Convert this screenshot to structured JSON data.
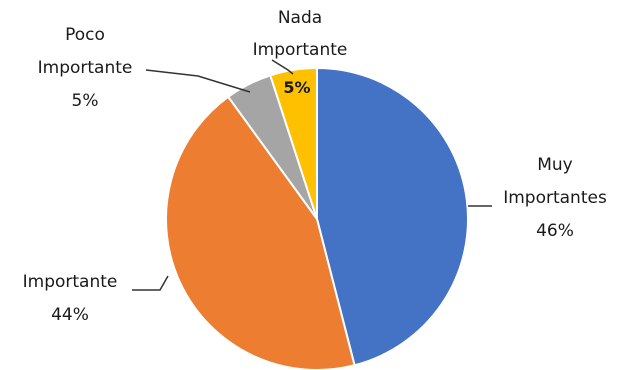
{
  "chart_data": {
    "type": "pie",
    "title": "",
    "legend": "none",
    "slices": [
      {
        "label_lines": [
          "Muy",
          "Importantes"
        ],
        "value": 46,
        "value_label": "46%",
        "color": "#4472C4"
      },
      {
        "label_lines": [
          "Importante"
        ],
        "value": 44,
        "value_label": "44%",
        "color": "#ED7D31"
      },
      {
        "label_lines": [
          "Poco",
          "Importante"
        ],
        "value": 5,
        "value_label": "5%",
        "color": "#A5A5A5"
      },
      {
        "label_lines": [
          "Nada",
          "Importante"
        ],
        "value": 5,
        "value_label": "5%",
        "color": "#FFC000"
      }
    ]
  }
}
